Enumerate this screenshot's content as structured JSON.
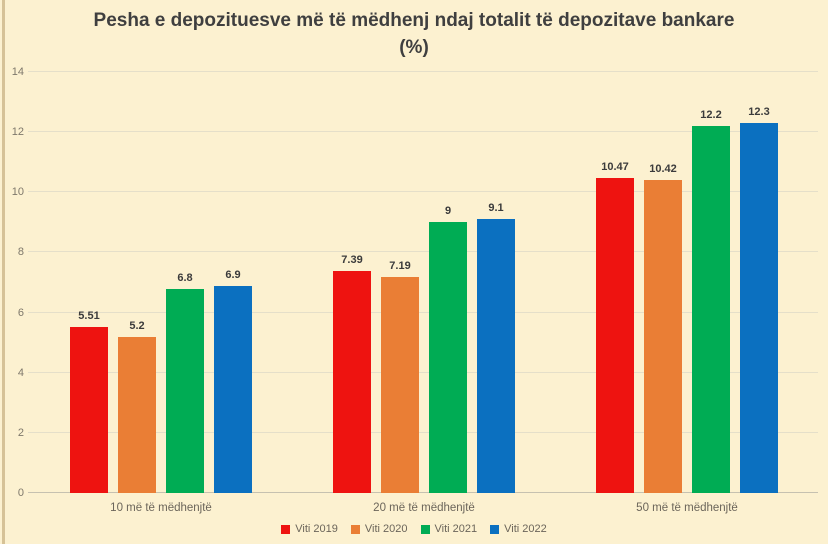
{
  "chart_data": {
    "type": "bar",
    "title": "Pesha e depozituesve më të mëdhenj ndaj totalit të depozitave bankare",
    "subtitle": "(%)",
    "categories": [
      "10 më të mëdhenjtë",
      "20 më të mëdhenjtë",
      "50 më të mëdhenjtë"
    ],
    "series": [
      {
        "name": "Viti 2019",
        "color": "#EE1310",
        "values": [
          5.51,
          7.39,
          10.47
        ]
      },
      {
        "name": "Viti 2020",
        "color": "#EA7E35",
        "values": [
          5.2,
          7.19,
          10.42
        ]
      },
      {
        "name": "Viti 2021",
        "color": "#00AC54",
        "values": [
          6.8,
          9,
          12.2
        ]
      },
      {
        "name": "Viti 2022",
        "color": "#0B70C0",
        "values": [
          6.9,
          9.1,
          12.3
        ]
      }
    ],
    "ylim": [
      0,
      14
    ],
    "y_ticks": [
      0,
      2,
      4,
      6,
      8,
      10,
      12,
      14
    ],
    "grid": true,
    "data_labels": true,
    "legend_position": "bottom",
    "colors": {
      "background": "#FCF1D0",
      "title_text": "#3F3F3F",
      "value_label_text": "#3B3B3B",
      "tick_text": "#7E786B",
      "category_text": "#6B655A",
      "legend_text": "#6B655A"
    }
  }
}
